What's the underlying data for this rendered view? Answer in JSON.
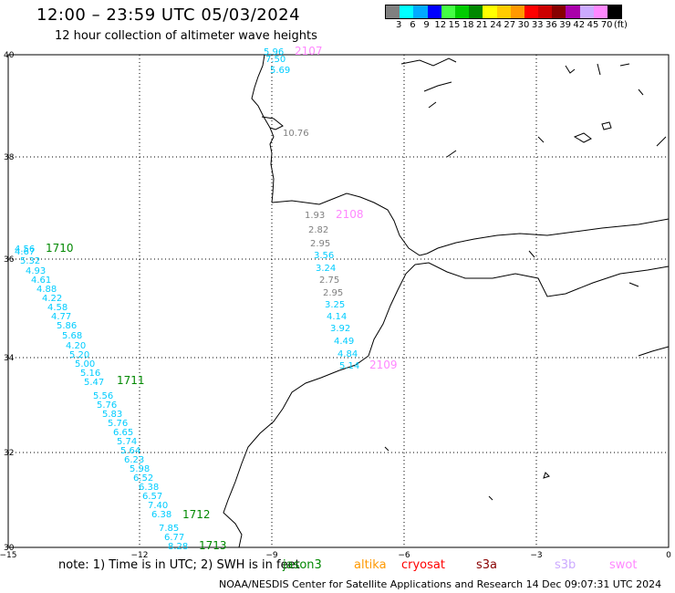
{
  "title": "12:00 – 23:59 UTC 05/03/2024",
  "subtitle": "12 hour collection of altimeter wave heights",
  "colorbar": {
    "colors": [
      "#808080",
      "#00ffff",
      "#00aaff",
      "#0000ff",
      "#44ff44",
      "#00cc00",
      "#008800",
      "#ffff00",
      "#ffcc00",
      "#ff9900",
      "#ff0000",
      "#cc0000",
      "#880000",
      "#aa00aa",
      "#ccaaff",
      "#ff88ff",
      "#000000"
    ],
    "labels": [
      "3",
      "6",
      "9",
      "12",
      "15",
      "18",
      "21",
      "24",
      "27",
      "30",
      "33",
      "36",
      "39",
      "42",
      "45",
      "70",
      "(ft)"
    ]
  },
  "axes": {
    "x_ticks": [
      "−15",
      "−12",
      "−9",
      "−6",
      "−3",
      "0"
    ],
    "y_ticks": [
      "40",
      "38",
      "36",
      "34",
      "32",
      "30"
    ]
  },
  "passes": [
    {
      "label": "2107",
      "color": "#ff88ff"
    },
    {
      "label": "2108",
      "color": "#ff88ff"
    },
    {
      "label": "2109",
      "color": "#ff88ff"
    },
    {
      "label": "1710",
      "color": "#008800"
    },
    {
      "label": "1711",
      "color": "#008800"
    },
    {
      "label": "1712",
      "color": "#008800"
    },
    {
      "label": "1713",
      "color": "#008800"
    }
  ],
  "swh_values": [
    {
      "v": "5.96",
      "c": "#00ccff"
    },
    {
      "v": "7.50",
      "c": "#00ccff"
    },
    {
      "v": "5.69",
      "c": "#00ccff"
    },
    {
      "v": "10.76",
      "c": "#808080"
    },
    {
      "v": "1.93",
      "c": "#808080"
    },
    {
      "v": "2.82",
      "c": "#808080"
    },
    {
      "v": "2.95",
      "c": "#808080"
    },
    {
      "v": "3.56",
      "c": "#00ccff"
    },
    {
      "v": "3.24",
      "c": "#00ccff"
    },
    {
      "v": "2.75",
      "c": "#808080"
    },
    {
      "v": "2.95",
      "c": "#808080"
    },
    {
      "v": "3.25",
      "c": "#00ccff"
    },
    {
      "v": "4.14",
      "c": "#00ccff"
    },
    {
      "v": "3.92",
      "c": "#00ccff"
    },
    {
      "v": "4.49",
      "c": "#00ccff"
    },
    {
      "v": "4.84",
      "c": "#00ccff"
    },
    {
      "v": "5.14",
      "c": "#00ccff"
    },
    {
      "v": "4.56",
      "c": "#00ccff"
    },
    {
      "v": "4.67",
      "c": "#00ccff"
    },
    {
      "v": "5.32",
      "c": "#00ccff"
    },
    {
      "v": "4.93",
      "c": "#00ccff"
    },
    {
      "v": "4.61",
      "c": "#00ccff"
    },
    {
      "v": "4.88",
      "c": "#00ccff"
    },
    {
      "v": "4.22",
      "c": "#00ccff"
    },
    {
      "v": "4.58",
      "c": "#00ccff"
    },
    {
      "v": "4.77",
      "c": "#00ccff"
    },
    {
      "v": "5.86",
      "c": "#00ccff"
    },
    {
      "v": "5.68",
      "c": "#00ccff"
    },
    {
      "v": "4.20",
      "c": "#00ccff"
    },
    {
      "v": "5.20",
      "c": "#00ccff"
    },
    {
      "v": "5.00",
      "c": "#00ccff"
    },
    {
      "v": "5.16",
      "c": "#00ccff"
    },
    {
      "v": "5.47",
      "c": "#00ccff"
    },
    {
      "v": "5.56",
      "c": "#00ccff"
    },
    {
      "v": "5.76",
      "c": "#00ccff"
    },
    {
      "v": "5.83",
      "c": "#00ccff"
    },
    {
      "v": "5.76",
      "c": "#00ccff"
    },
    {
      "v": "6.65",
      "c": "#00ccff"
    },
    {
      "v": "5.74",
      "c": "#00ccff"
    },
    {
      "v": "5.64",
      "c": "#00ccff"
    },
    {
      "v": "6.23",
      "c": "#00ccff"
    },
    {
      "v": "5.98",
      "c": "#00ccff"
    },
    {
      "v": "6.52",
      "c": "#00ccff"
    },
    {
      "v": "6.38",
      "c": "#00ccff"
    },
    {
      "v": "6.57",
      "c": "#00ccff"
    },
    {
      "v": "7.40",
      "c": "#00ccff"
    },
    {
      "v": "6.38",
      "c": "#00ccff"
    },
    {
      "v": "7.85",
      "c": "#00ccff"
    },
    {
      "v": "6.77",
      "c": "#00ccff"
    },
    {
      "v": "8.28",
      "c": "#00ccff"
    }
  ],
  "note": "note:  1) Time is in UTC;  2) SWH is in feet",
  "satellites": [
    {
      "name": "jason3",
      "color": "#008800"
    },
    {
      "name": "altika",
      "color": "#ff9900"
    },
    {
      "name": "cryosat",
      "color": "#ff0000"
    },
    {
      "name": "s3a",
      "color": "#880000"
    },
    {
      "name": "s3b",
      "color": "#ccaaff"
    },
    {
      "name": "swot",
      "color": "#ff88ff"
    }
  ],
  "credit": "NOAA/NESDIS Center for Satellite Applications and Research    14 Dec 09:07:31 UTC 2024"
}
